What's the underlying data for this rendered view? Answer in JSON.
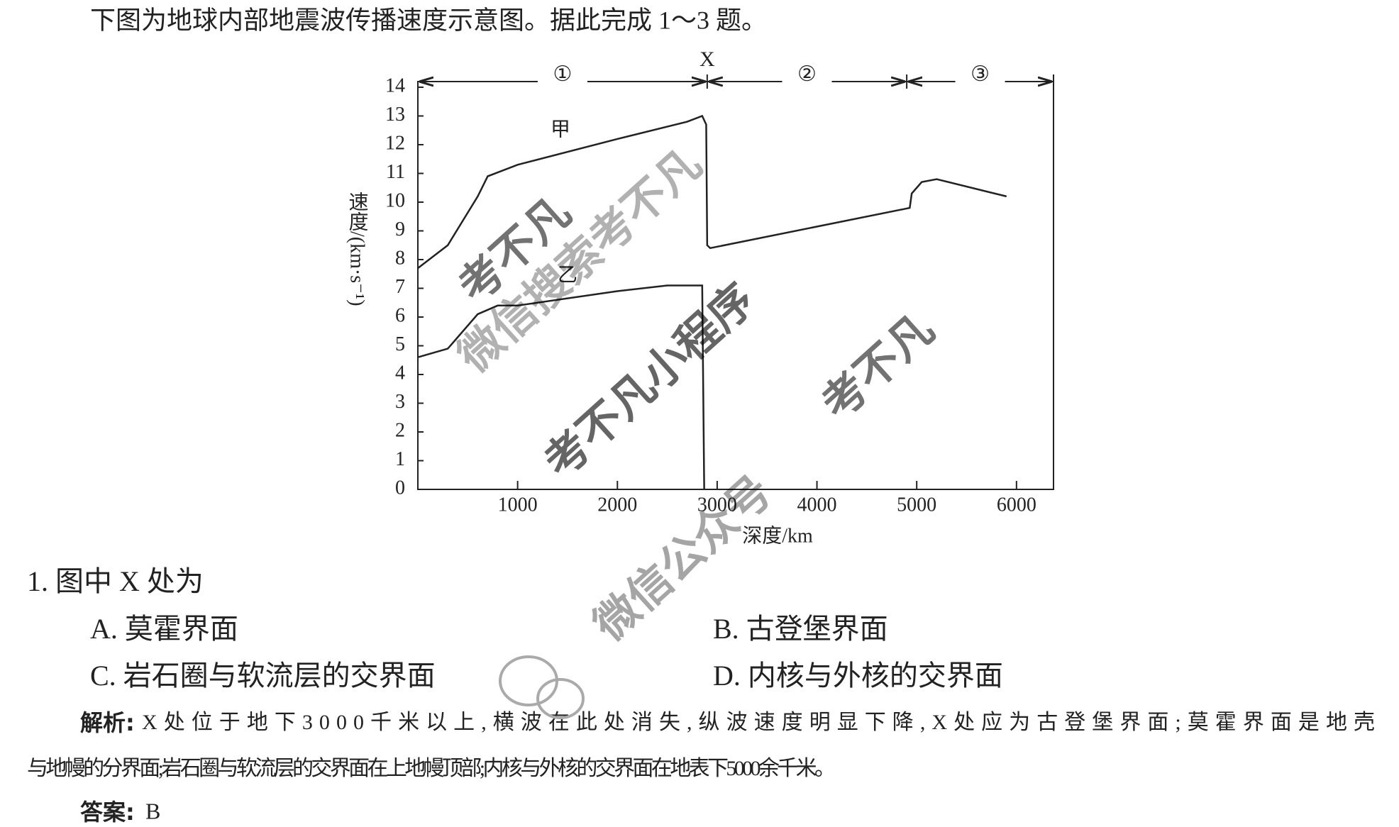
{
  "header": {
    "text": "下图为地球内部地震波传播速度示意图。据此完成 1～3 题。"
  },
  "chart_data": {
    "type": "line",
    "x_label": "深度/km",
    "y_label": "速度/(km·s⁻¹)",
    "xlim": [
      0,
      6371
    ],
    "xticks": [
      1000,
      2000,
      3000,
      4000,
      5000,
      6000
    ],
    "ylim": [
      0,
      14
    ],
    "yticks": [
      0,
      1,
      2,
      3,
      4,
      5,
      6,
      7,
      8,
      9,
      10,
      11,
      12,
      13,
      14
    ],
    "series": [
      {
        "name": "甲",
        "color": "#222222",
        "x": [
          0,
          300,
          600,
          700,
          1000,
          2000,
          2700,
          2850,
          2890,
          2900,
          2930,
          4930,
          4950,
          5050,
          5200,
          5900
        ],
        "values": [
          7.7,
          8.5,
          10.2,
          10.9,
          11.3,
          12.2,
          12.8,
          13.0,
          12.7,
          8.5,
          8.4,
          9.8,
          10.3,
          10.7,
          10.8,
          10.2
        ]
      },
      {
        "name": "乙",
        "color": "#222222",
        "x": [
          0,
          300,
          600,
          800,
          1000,
          2000,
          2500,
          2850,
          2870
        ],
        "values": [
          4.6,
          4.9,
          6.1,
          6.4,
          6.4,
          6.9,
          7.1,
          7.1,
          0
        ]
      }
    ],
    "boundary": {
      "label": "X",
      "value": 2900
    },
    "regions": [
      {
        "label": "①",
        "from": 0,
        "to": 2900
      },
      {
        "label": "②",
        "from": 2900,
        "to": 4900
      },
      {
        "label": "③",
        "from": 4900,
        "to": 6371
      }
    ]
  },
  "question": {
    "stem": "1. 图中 X 处为",
    "options": [
      "A. 莫霍界面",
      "B. 古登堡界面",
      "C. 岩石圈与软流层的交界面",
      "D. 内核与外核的交界面"
    ]
  },
  "analysis": {
    "label": "解析:",
    "lines": [
      "X处位于地下3000千米以上,横波在此处消失,纵波速度明显下降,X处应为古登堡界面;莫霍界面是地壳",
      "与地幔的分界面;岩石圈与软流层的交界面在上地幔顶部;内核与外核的交界面在地表下5000余千米。"
    ]
  },
  "answer": {
    "label": "答案:",
    "value": "B"
  },
  "watermarks": [
    "考不凡",
    "微信搜索考不凡",
    "考不凡小程序",
    "考不凡",
    "微信公众号"
  ]
}
